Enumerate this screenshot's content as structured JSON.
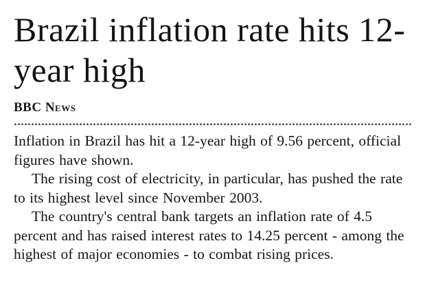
{
  "article": {
    "headline": "Brazil inflation rate hits 12-year high",
    "byline": "BBC News",
    "paragraphs": {
      "0": "Inflation in Brazil has hit a 12-year high of 9.56 percent, official figures have shown.",
      "1": "The rising cost of electricity, in particular, has pushed the rate to its highest level since November 2003.",
      "2": "The country's central bank targets an inflation rate of 4.5 percent and has raised interest rates to 14.25 percent - among the highest of major economies - to combat rising prices."
    }
  }
}
